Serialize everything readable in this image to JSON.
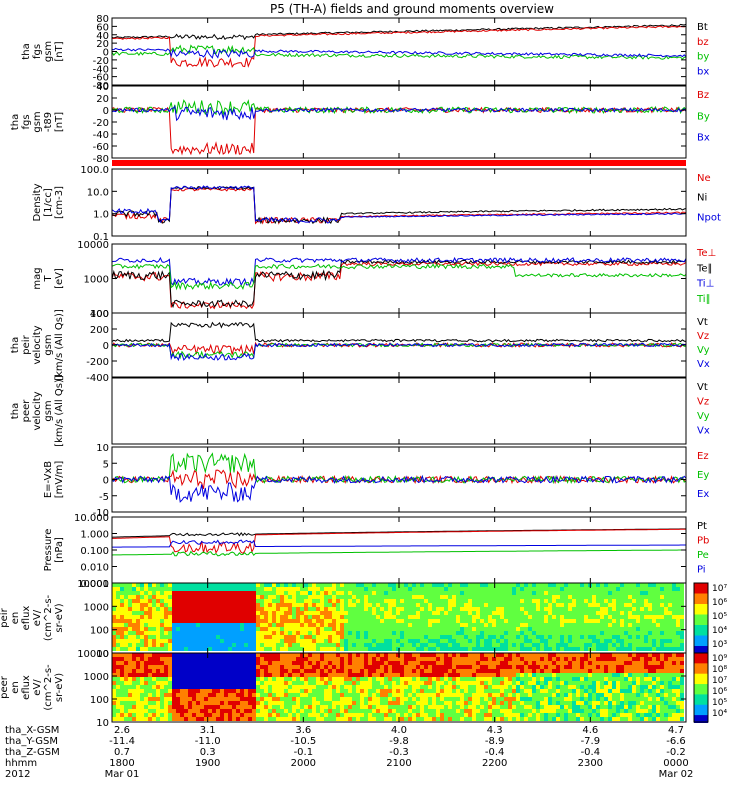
{
  "chart_data": {
    "type": "line",
    "title": "P5 (TH-A) fields and ground moments overview",
    "panels": [
      {
        "id": "fgs_gsm",
        "ylabel": [
          "tha",
          "fgs",
          "gsm",
          "[nT]"
        ],
        "ylim": [
          -80,
          80
        ],
        "yticks": [
          "80",
          "60",
          "40",
          "20",
          "0",
          "-20",
          "-40",
          "-60",
          "-80"
        ],
        "series": [
          {
            "name": "Bt",
            "color": "#000000"
          },
          {
            "name": "bz",
            "color": "#e00000"
          },
          {
            "name": "by",
            "color": "#00c000"
          },
          {
            "name": "bx",
            "color": "#0000e0"
          }
        ]
      },
      {
        "id": "fgs_gsm_t89",
        "ylabel": [
          "tha",
          "fgs",
          "gsm",
          "-t89",
          "[nT]"
        ],
        "ylim": [
          -80,
          40
        ],
        "yticks": [
          "40",
          "20",
          "0",
          "-20",
          "-40",
          "-60",
          "-80"
        ],
        "series": [
          {
            "name": "Bz",
            "color": "#e00000"
          },
          {
            "name": "By",
            "color": "#00c000"
          },
          {
            "name": "Bx",
            "color": "#0000e0"
          }
        ]
      },
      {
        "id": "density",
        "ylabel": [
          "Density",
          "[1/cc]",
          "[cm-3]"
        ],
        "log": true,
        "ylim": [
          0.1,
          100
        ],
        "yticks": [
          "100.0",
          "10.0",
          "1.0",
          "0.1"
        ],
        "series": [
          {
            "name": "Ne",
            "color": "#e00000"
          },
          {
            "name": "Ni",
            "color": "#000000"
          },
          {
            "name": "Npot",
            "color": "#0000e0"
          }
        ]
      },
      {
        "id": "temperature",
        "ylabel": [
          "mag",
          "T",
          "[eV]"
        ],
        "log": true,
        "ylim": [
          30,
          15000
        ],
        "yticks": [
          "10000",
          "1000",
          "100"
        ],
        "series": [
          {
            "name": "Te⊥",
            "color": "#e00000"
          },
          {
            "name": "Te∥",
            "color": "#000000"
          },
          {
            "name": "Ti⊥",
            "color": "#0000e0"
          },
          {
            "name": "Ti∥",
            "color": "#00c000"
          }
        ]
      },
      {
        "id": "peir_velocity",
        "ylabel": [
          "tha",
          "peir",
          "velocity",
          "gsm",
          "[km/s (All Qs)]"
        ],
        "ylim": [
          -400,
          400
        ],
        "yticks": [
          "400",
          "200",
          "0",
          "-200",
          "-400"
        ],
        "series": [
          {
            "name": "Vt",
            "color": "#000000"
          },
          {
            "name": "Vz",
            "color": "#e00000"
          },
          {
            "name": "Vy",
            "color": "#00c000"
          },
          {
            "name": "Vx",
            "color": "#0000e0"
          }
        ]
      },
      {
        "id": "peer_velocity",
        "ylabel": [
          "tha",
          "peer",
          "velocity",
          "gsm",
          "[km/s (All Qs)]"
        ],
        "ylim": [
          -400,
          400
        ],
        "yticks": [],
        "series": [
          {
            "name": "Vt",
            "color": "#000000"
          },
          {
            "name": "Vz",
            "color": "#e00000"
          },
          {
            "name": "Vy",
            "color": "#00c000"
          },
          {
            "name": "Vx",
            "color": "#0000e0"
          }
        ]
      },
      {
        "id": "efield",
        "ylabel": [
          "E=-VxB",
          "[mV/m]"
        ],
        "ylim": [
          -10,
          10
        ],
        "yticks": [
          "10",
          "5",
          "0",
          "-5",
          "-10"
        ],
        "series": [
          {
            "name": "Ez",
            "color": "#e00000"
          },
          {
            "name": "Ey",
            "color": "#00c000"
          },
          {
            "name": "Ex",
            "color": "#0000e0"
          }
        ]
      },
      {
        "id": "pressure",
        "ylabel": [
          "Pressure",
          "[nPa]"
        ],
        "log": true,
        "ylim": [
          0.001,
          10
        ],
        "yticks": [
          "10.000",
          "1.000",
          "0.100",
          "0.010",
          "0.001"
        ],
        "series": [
          {
            "name": "Pt",
            "color": "#000000"
          },
          {
            "name": "Pb",
            "color": "#e00000"
          },
          {
            "name": "Pe",
            "color": "#00c000"
          },
          {
            "name": "Pi",
            "color": "#0000e0"
          }
        ]
      },
      {
        "id": "peir_spec",
        "type": "heatmap",
        "ylabel": [
          "tha",
          "peir",
          "en",
          "eflux",
          "eV/",
          "(cm^2-s-",
          "sr-eV)"
        ],
        "yticks": [
          "10000",
          "1000",
          "100",
          "10"
        ],
        "colorbar": [
          "10⁷",
          "10⁶",
          "10⁵",
          "10⁴",
          "10³"
        ]
      },
      {
        "id": "peer_spec",
        "type": "heatmap",
        "ylabel": [
          "tha",
          "peer",
          "en",
          "eflux",
          "eV/",
          "(cm^2-s-",
          "sr-eV)"
        ],
        "yticks": [
          "10000",
          "1000",
          "100",
          "10"
        ],
        "colorbar": [
          "10⁹",
          "10⁸",
          "10⁷",
          "10⁶",
          "10⁵",
          "10⁴"
        ]
      }
    ],
    "x_axis": {
      "row_labels": [
        "tha_X-GSM",
        "tha_Y-GSM",
        "tha_Z-GSM",
        "hhmm",
        "2012"
      ],
      "columns": [
        {
          "x": "2.6",
          "y": "-11.4",
          "z": "0.7",
          "hhmm": "1800",
          "date": "Mar 01"
        },
        {
          "x": "3.1",
          "y": "-11.0",
          "z": "0.3",
          "hhmm": "1900",
          "date": ""
        },
        {
          "x": "3.6",
          "y": "-10.5",
          "z": "-0.1",
          "hhmm": "2000",
          "date": ""
        },
        {
          "x": "4.0",
          "y": "-9.8",
          "z": "-0.3",
          "hhmm": "2100",
          "date": ""
        },
        {
          "x": "4.3",
          "y": "-8.9",
          "z": "-0.4",
          "hhmm": "2200",
          "date": ""
        },
        {
          "x": "4.6",
          "y": "-7.9",
          "z": "-0.4",
          "hhmm": "2300",
          "date": ""
        },
        {
          "x": "4.7",
          "y": "-6.6",
          "z": "-0.2",
          "hhmm": "0000",
          "date": "Mar 02"
        }
      ]
    }
  }
}
